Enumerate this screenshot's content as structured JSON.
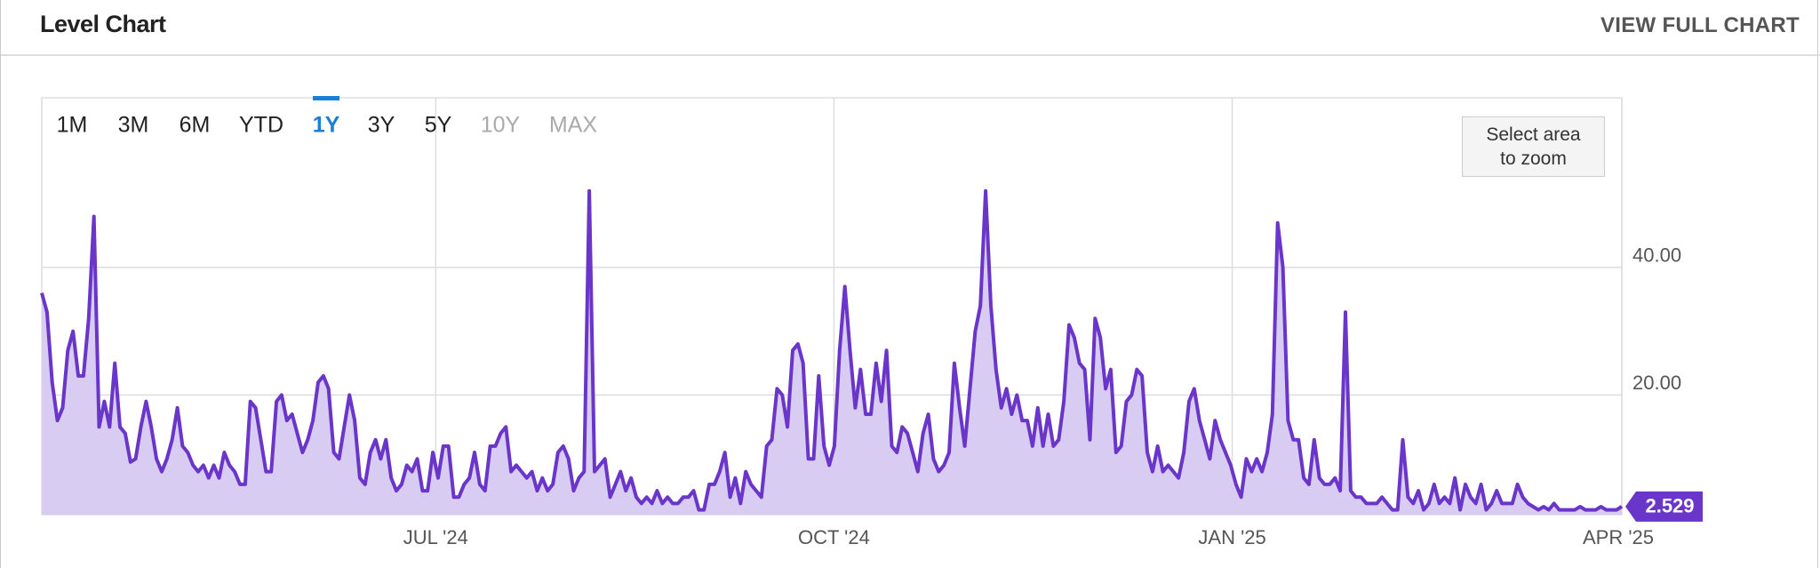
{
  "chart_data": {
    "type": "line",
    "title": "Level Chart",
    "link": "VIEW FULL CHART",
    "zoom_hint": "Select area to zoom",
    "range_buttons": [
      {
        "label": "1M"
      },
      {
        "label": "3M"
      },
      {
        "label": "6M"
      },
      {
        "label": "YTD"
      },
      {
        "label": "1Y",
        "active": true
      },
      {
        "label": "3Y"
      },
      {
        "label": "5Y"
      },
      {
        "label": "10Y",
        "disabled": true
      },
      {
        "label": "MAX",
        "disabled": true
      }
    ],
    "xlim": [
      "2024-04",
      "2025-04"
    ],
    "xticks": [
      {
        "value": "2024-07",
        "label": "JUL '24"
      },
      {
        "value": "2024-10",
        "label": "OCT '24"
      },
      {
        "value": "2025-01",
        "label": "JAN '25"
      },
      {
        "value": "2025-04",
        "label": "APR '25"
      }
    ],
    "ylim": [
      1.25,
      66.6
    ],
    "yticks": [
      {
        "value": 20,
        "label": "20.00"
      },
      {
        "value": 40,
        "label": "40.00"
      }
    ],
    "grid": true,
    "series": [
      {
        "color": "#6a35c9",
        "fill": "#d9ccf2",
        "values": [
          36,
          33,
          22,
          16,
          18,
          27,
          30,
          23,
          23,
          32,
          48,
          15,
          19,
          15,
          25,
          15,
          14,
          9.5,
          10,
          15,
          19,
          15,
          10,
          8,
          10,
          13,
          18,
          12,
          11,
          9,
          8,
          9,
          7,
          9,
          7,
          11,
          9,
          8,
          6,
          6,
          19,
          18,
          13,
          8,
          8,
          19,
          20,
          16,
          17,
          14,
          11,
          13,
          16,
          22,
          23,
          21,
          11,
          10,
          15,
          20,
          16,
          7,
          6,
          11,
          13,
          10,
          13,
          7,
          5,
          6,
          9,
          8,
          10,
          5,
          5,
          11,
          7,
          12,
          12,
          4,
          4,
          6,
          7,
          11,
          6,
          5,
          12,
          12,
          14,
          15,
          8,
          9,
          8,
          7,
          8,
          5,
          7,
          5,
          6,
          11,
          12,
          10,
          5,
          7,
          8,
          52,
          8,
          9,
          10,
          4,
          6,
          8,
          5,
          7,
          4,
          3,
          4,
          3,
          5,
          3,
          4,
          3,
          3,
          4,
          4,
          5,
          2,
          2,
          6,
          6,
          8,
          11,
          4,
          7,
          3,
          8,
          6,
          5,
          4,
          12,
          13,
          21,
          20,
          15,
          27,
          28,
          25,
          10,
          10,
          23,
          12,
          9,
          12,
          27,
          37,
          27,
          18,
          24,
          17,
          17,
          25,
          19,
          27,
          12,
          11,
          15,
          14,
          11,
          8,
          14,
          17,
          10,
          8,
          9,
          11,
          25,
          18,
          12,
          21,
          30,
          34,
          52,
          34,
          24,
          18,
          21,
          17,
          20,
          16,
          16,
          12,
          18,
          12,
          17,
          12,
          13,
          19,
          31,
          29,
          25,
          24,
          13,
          32,
          29,
          21,
          24,
          11,
          12,
          19,
          20,
          24,
          23,
          11,
          8,
          12,
          8,
          9,
          8,
          7,
          11,
          19,
          21,
          16,
          13,
          10,
          16,
          13,
          11,
          9,
          6,
          4,
          10,
          8,
          10,
          8,
          11,
          17,
          47,
          40,
          16,
          13,
          13,
          7,
          6,
          13,
          7,
          6,
          6,
          7,
          5,
          33,
          5,
          4,
          4,
          3,
          3,
          3,
          4,
          3,
          2,
          2,
          13,
          4,
          3,
          5,
          2,
          3,
          6,
          3,
          4,
          3,
          7,
          2,
          6,
          4,
          3,
          6,
          2,
          3,
          5,
          3,
          3,
          3,
          6,
          4,
          3,
          2.5,
          2,
          2.5,
          2,
          3,
          2,
          2,
          2,
          2,
          2.5,
          2,
          2,
          2,
          2.5,
          2,
          2,
          2,
          2.529
        ]
      }
    ]
  }
}
